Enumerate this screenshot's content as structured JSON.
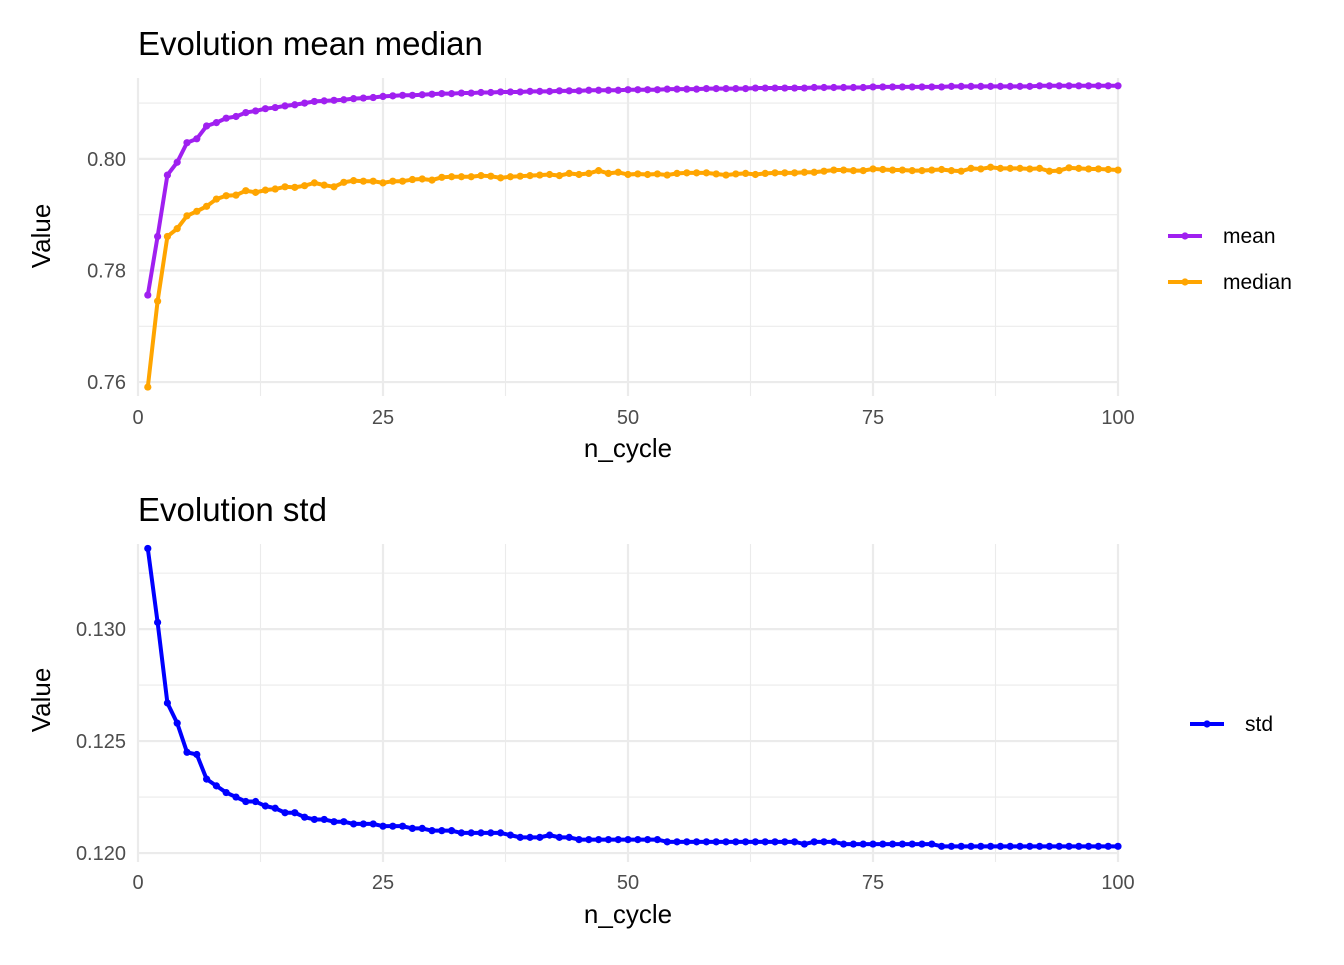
{
  "chart_data": [
    {
      "type": "line",
      "title": "Evolution mean median",
      "xlabel": "n_cycle",
      "ylabel": "Value",
      "xlim": [
        0,
        100
      ],
      "ylim": [
        0.7575,
        0.8145
      ],
      "xticks": [
        0,
        25,
        50,
        75,
        100
      ],
      "yticks": [
        0.76,
        0.78,
        0.8
      ],
      "ytick_labels": [
        "0.76",
        "0.78",
        "0.80"
      ],
      "grid": true,
      "legend_position": "right",
      "series": [
        {
          "name": "mean",
          "color": "#a020f0",
          "x": [
            1,
            2,
            3,
            4,
            5,
            6,
            7,
            8,
            9,
            10,
            11,
            12,
            13,
            14,
            15,
            16,
            17,
            18,
            19,
            20,
            21,
            22,
            23,
            24,
            25,
            26,
            27,
            28,
            29,
            30,
            31,
            32,
            33,
            34,
            35,
            36,
            37,
            38,
            39,
            40,
            41,
            42,
            43,
            44,
            45,
            46,
            47,
            48,
            49,
            50,
            51,
            52,
            53,
            54,
            55,
            56,
            57,
            58,
            59,
            60,
            61,
            62,
            63,
            64,
            65,
            66,
            67,
            68,
            69,
            70,
            71,
            72,
            73,
            74,
            75,
            76,
            77,
            78,
            79,
            80,
            81,
            82,
            83,
            84,
            85,
            86,
            87,
            88,
            89,
            90,
            91,
            92,
            93,
            94,
            95,
            96,
            97,
            98,
            99,
            100
          ],
          "values": [
            0.7756,
            0.7861,
            0.7971,
            0.7994,
            0.8029,
            0.8036,
            0.8059,
            0.8065,
            0.8073,
            0.8076,
            0.8083,
            0.8086,
            0.809,
            0.8092,
            0.8095,
            0.8097,
            0.81,
            0.8103,
            0.8104,
            0.8105,
            0.8106,
            0.8108,
            0.8109,
            0.811,
            0.8112,
            0.8113,
            0.8114,
            0.8114,
            0.8115,
            0.8116,
            0.8117,
            0.8117,
            0.8118,
            0.8118,
            0.8119,
            0.8119,
            0.812,
            0.812,
            0.812,
            0.8121,
            0.8121,
            0.8121,
            0.8122,
            0.8122,
            0.8122,
            0.8123,
            0.8123,
            0.8123,
            0.8123,
            0.8124,
            0.8124,
            0.8124,
            0.8124,
            0.8125,
            0.8125,
            0.8125,
            0.8125,
            0.8126,
            0.8126,
            0.8126,
            0.8126,
            0.8126,
            0.8127,
            0.8127,
            0.8127,
            0.8127,
            0.8127,
            0.8127,
            0.8128,
            0.8128,
            0.8128,
            0.8128,
            0.8128,
            0.8128,
            0.8129,
            0.8129,
            0.8129,
            0.8129,
            0.8129,
            0.8129,
            0.8129,
            0.8129,
            0.813,
            0.813,
            0.813,
            0.813,
            0.813,
            0.813,
            0.813,
            0.813,
            0.813,
            0.8131,
            0.8131,
            0.8131,
            0.8131,
            0.8131,
            0.8131,
            0.8131,
            0.8131,
            0.8131
          ]
        },
        {
          "name": "median",
          "color": "#ffa500",
          "x": [
            1,
            2,
            3,
            4,
            5,
            6,
            7,
            8,
            9,
            10,
            11,
            12,
            13,
            14,
            15,
            16,
            17,
            18,
            19,
            20,
            21,
            22,
            23,
            24,
            25,
            26,
            27,
            28,
            29,
            30,
            31,
            32,
            33,
            34,
            35,
            36,
            37,
            38,
            39,
            40,
            41,
            42,
            43,
            44,
            45,
            46,
            47,
            48,
            49,
            50,
            51,
            52,
            53,
            54,
            55,
            56,
            57,
            58,
            59,
            60,
            61,
            62,
            63,
            64,
            65,
            66,
            67,
            68,
            69,
            70,
            71,
            72,
            73,
            74,
            75,
            76,
            77,
            78,
            79,
            80,
            81,
            82,
            83,
            84,
            85,
            86,
            87,
            88,
            89,
            90,
            91,
            92,
            93,
            94,
            95,
            96,
            97,
            98,
            99,
            100
          ],
          "values": [
            0.7591,
            0.7745,
            0.7861,
            0.7875,
            0.7898,
            0.7906,
            0.7915,
            0.7928,
            0.7934,
            0.7935,
            0.7943,
            0.794,
            0.7944,
            0.7946,
            0.795,
            0.7949,
            0.7952,
            0.7957,
            0.7953,
            0.795,
            0.7958,
            0.7961,
            0.796,
            0.796,
            0.7957,
            0.796,
            0.796,
            0.7963,
            0.7964,
            0.7962,
            0.7967,
            0.7968,
            0.7968,
            0.7968,
            0.797,
            0.7969,
            0.7966,
            0.7968,
            0.7969,
            0.797,
            0.7971,
            0.7972,
            0.797,
            0.7974,
            0.7972,
            0.7974,
            0.7979,
            0.7974,
            0.7976,
            0.7972,
            0.7973,
            0.7972,
            0.7973,
            0.7971,
            0.7974,
            0.7975,
            0.7975,
            0.7975,
            0.7973,
            0.7971,
            0.7973,
            0.7974,
            0.7972,
            0.7974,
            0.7975,
            0.7975,
            0.7975,
            0.7976,
            0.7976,
            0.7978,
            0.798,
            0.798,
            0.7979,
            0.7979,
            0.7982,
            0.7981,
            0.798,
            0.798,
            0.7979,
            0.7979,
            0.798,
            0.7981,
            0.7979,
            0.7978,
            0.7983,
            0.7982,
            0.7985,
            0.7983,
            0.7983,
            0.7983,
            0.7982,
            0.7983,
            0.7978,
            0.7979,
            0.7984,
            0.7983,
            0.7982,
            0.7982,
            0.7981,
            0.798
          ]
        }
      ]
    },
    {
      "type": "line",
      "title": "Evolution std",
      "xlabel": "n_cycle",
      "ylabel": "Value",
      "xlim": [
        0,
        100
      ],
      "ylim": [
        0.1196,
        0.1338
      ],
      "xticks": [
        0,
        25,
        50,
        75,
        100
      ],
      "yticks": [
        0.12,
        0.125,
        0.13
      ],
      "ytick_labels": [
        "0.120",
        "0.125",
        "0.130"
      ],
      "grid": true,
      "legend_position": "right",
      "series": [
        {
          "name": "std",
          "color": "#0000ff",
          "x": [
            1,
            2,
            3,
            4,
            5,
            6,
            7,
            8,
            9,
            10,
            11,
            12,
            13,
            14,
            15,
            16,
            17,
            18,
            19,
            20,
            21,
            22,
            23,
            24,
            25,
            26,
            27,
            28,
            29,
            30,
            31,
            32,
            33,
            34,
            35,
            36,
            37,
            38,
            39,
            40,
            41,
            42,
            43,
            44,
            45,
            46,
            47,
            48,
            49,
            50,
            51,
            52,
            53,
            54,
            55,
            56,
            57,
            58,
            59,
            60,
            61,
            62,
            63,
            64,
            65,
            66,
            67,
            68,
            69,
            70,
            71,
            72,
            73,
            74,
            75,
            76,
            77,
            78,
            79,
            80,
            81,
            82,
            83,
            84,
            85,
            86,
            87,
            88,
            89,
            90,
            91,
            92,
            93,
            94,
            95,
            96,
            97,
            98,
            99,
            100
          ],
          "values": [
            0.1336,
            0.1303,
            0.1267,
            0.1258,
            0.1245,
            0.1244,
            0.1233,
            0.123,
            0.1227,
            0.1225,
            0.1223,
            0.1223,
            0.1221,
            0.122,
            0.1218,
            0.1218,
            0.1216,
            0.1215,
            0.1215,
            0.1214,
            0.1214,
            0.1213,
            0.1213,
            0.1213,
            0.1212,
            0.1212,
            0.1212,
            0.1211,
            0.1211,
            0.121,
            0.121,
            0.121,
            0.1209,
            0.1209,
            0.1209,
            0.1209,
            0.1209,
            0.1208,
            0.1207,
            0.1207,
            0.1207,
            0.1208,
            0.1207,
            0.1207,
            0.1206,
            0.1206,
            0.1206,
            0.1206,
            0.1206,
            0.1206,
            0.1206,
            0.1206,
            0.1206,
            0.1205,
            0.1205,
            0.1205,
            0.1205,
            0.1205,
            0.1205,
            0.1205,
            0.1205,
            0.1205,
            0.1205,
            0.1205,
            0.1205,
            0.1205,
            0.1205,
            0.1204,
            0.1205,
            0.1205,
            0.1205,
            0.1204,
            0.1204,
            0.1204,
            0.1204,
            0.1204,
            0.1204,
            0.1204,
            0.1204,
            0.1204,
            0.1204,
            0.1203,
            0.1203,
            0.1203,
            0.1203,
            0.1203,
            0.1203,
            0.1203,
            0.1203,
            0.1203,
            0.1203,
            0.1203,
            0.1203,
            0.1203,
            0.1203,
            0.1203,
            0.1203,
            0.1203,
            0.1203,
            0.1203
          ]
        }
      ]
    }
  ]
}
